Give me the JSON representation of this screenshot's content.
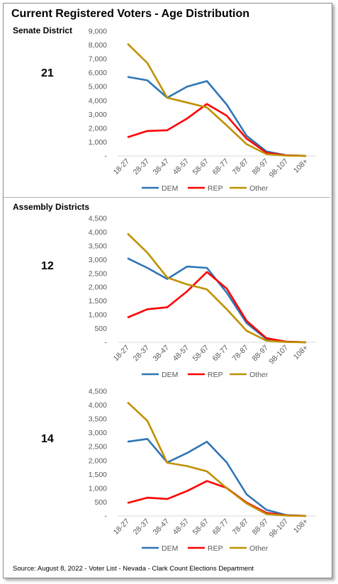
{
  "title": "Current Registered Voters - Age Distribution",
  "sections": {
    "senate": "Senate District",
    "assembly": "Assembly Districts"
  },
  "source": "Source: August 8, 2022 - Voter List - Nevada - Clark Count Elections Department",
  "colors": {
    "DEM": "#2e75b6",
    "REP": "#ff0000",
    "Other": "#bf9000"
  },
  "chart_data": [
    {
      "type": "line",
      "district": "21",
      "categories": [
        "18-27",
        "28-37",
        "38-47",
        "48-57",
        "58-67",
        "68-77",
        "78-87",
        "88-97",
        "98-107",
        "108+"
      ],
      "y_ticks": [
        "-",
        "1,000",
        "2,000",
        "3,000",
        "4,000",
        "5,000",
        "6,000",
        "7,000",
        "8,000",
        "9,000"
      ],
      "ylim": [
        0,
        9000
      ],
      "legend": "bottom",
      "grid": false,
      "series": [
        {
          "name": "DEM",
          "values": [
            5700,
            5450,
            4200,
            5000,
            5400,
            3700,
            1450,
            320,
            50,
            5
          ]
        },
        {
          "name": "REP",
          "values": [
            1350,
            1800,
            1850,
            2700,
            3750,
            2900,
            1250,
            230,
            40,
            5
          ]
        },
        {
          "name": "Other",
          "values": [
            8100,
            6700,
            4200,
            3850,
            3500,
            2200,
            850,
            130,
            20,
            3
          ]
        }
      ]
    },
    {
      "type": "line",
      "district": "12",
      "categories": [
        "18-27",
        "28-37",
        "38-47",
        "48-57",
        "58-67",
        "68-77",
        "78-87",
        "88-97",
        "98-107",
        "108+"
      ],
      "y_ticks": [
        "-",
        "500",
        "1,000",
        "1,500",
        "2,000",
        "2,500",
        "3,000",
        "3,500",
        "4,000",
        "4,500"
      ],
      "ylim": [
        0,
        4500
      ],
      "legend": "bottom",
      "grid": false,
      "series": [
        {
          "name": "DEM",
          "values": [
            3050,
            2700,
            2300,
            2750,
            2700,
            1800,
            700,
            120,
            20,
            3
          ]
        },
        {
          "name": "REP",
          "values": [
            900,
            1200,
            1270,
            1850,
            2550,
            1950,
            780,
            150,
            25,
            3
          ]
        },
        {
          "name": "Other",
          "values": [
            3950,
            3250,
            2350,
            2100,
            1920,
            1200,
            420,
            60,
            10,
            2
          ]
        }
      ]
    },
    {
      "type": "line",
      "district": "14",
      "categories": [
        "18-27",
        "28-37",
        "38-47",
        "48-57",
        "58-67",
        "68-77",
        "78-87",
        "88-97",
        "98-107",
        "108+"
      ],
      "y_ticks": [
        "-",
        "500",
        "1,000",
        "1,500",
        "2,000",
        "2,500",
        "3,000",
        "3,500",
        "4,000",
        "4,500"
      ],
      "ylim": [
        0,
        4500
      ],
      "legend": "bottom",
      "grid": false,
      "series": [
        {
          "name": "DEM",
          "values": [
            2680,
            2780,
            1930,
            2270,
            2680,
            1930,
            780,
            220,
            30,
            3
          ]
        },
        {
          "name": "REP",
          "values": [
            470,
            660,
            610,
            900,
            1260,
            1010,
            480,
            110,
            20,
            2
          ]
        },
        {
          "name": "Other",
          "values": [
            4100,
            3430,
            1920,
            1800,
            1610,
            1000,
            450,
            70,
            15,
            2
          ]
        }
      ]
    }
  ]
}
